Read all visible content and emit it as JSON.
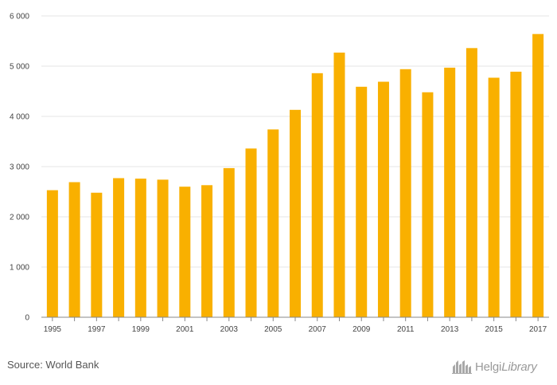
{
  "chart_data": {
    "type": "bar",
    "categories": [
      "1995",
      "1996",
      "1997",
      "1998",
      "1999",
      "2000",
      "2001",
      "2002",
      "2003",
      "2004",
      "2005",
      "2006",
      "2007",
      "2008",
      "2009",
      "2010",
      "2011",
      "2012",
      "2013",
      "2014",
      "2015",
      "2016",
      "2017"
    ],
    "values": [
      2530,
      2690,
      2480,
      2770,
      2760,
      2740,
      2600,
      2630,
      2970,
      3360,
      3740,
      4130,
      4860,
      5270,
      4590,
      4690,
      4940,
      4480,
      4970,
      5360,
      4770,
      4890,
      5640
    ],
    "x_tick_labels": [
      "1995",
      "",
      "1997",
      "",
      "1999",
      "",
      "2001",
      "",
      "2003",
      "",
      "2005",
      "",
      "2007",
      "",
      "2009",
      "",
      "2011",
      "",
      "2013",
      "",
      "2015",
      "",
      "2017"
    ],
    "y_ticks": [
      0,
      1000,
      2000,
      3000,
      4000,
      5000,
      6000
    ],
    "y_tick_labels": [
      "0",
      "1 000",
      "2 000",
      "3 000",
      "4 000",
      "5 000",
      "6 000"
    ],
    "ylim": [
      0,
      6000
    ],
    "title": "",
    "xlabel": "",
    "ylabel": "",
    "grid": true,
    "bar_color": "#F9B000"
  },
  "footer": {
    "source": "Source: World Bank",
    "brand_main": "Helgi",
    "brand_lib": "Library"
  }
}
